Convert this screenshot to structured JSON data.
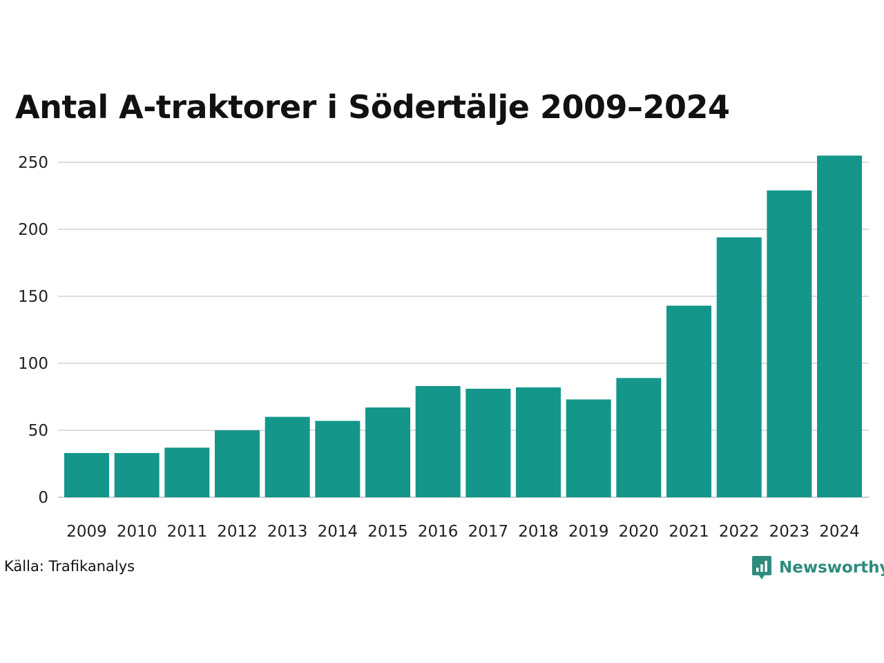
{
  "chart_data": {
    "type": "bar",
    "title": "Antal A-traktorer i Södertälje 2009–2024",
    "categories": [
      "2009",
      "2010",
      "2011",
      "2012",
      "2013",
      "2014",
      "2015",
      "2016",
      "2017",
      "2018",
      "2019",
      "2020",
      "2021",
      "2022",
      "2023",
      "2024"
    ],
    "series": [
      {
        "values": [
          33,
          33,
          37,
          50,
          60,
          57,
          67,
          83,
          81,
          82,
          73,
          89,
          143,
          194,
          229,
          255
        ]
      }
    ],
    "yticks": [
      0,
      50,
      100,
      150,
      200,
      250
    ],
    "ylim": [
      0,
      260
    ],
    "xlabel": "",
    "ylabel": "",
    "grid": true,
    "legend": "none",
    "bar_color": "#14968a",
    "grid_color": "#dddddd"
  },
  "footer": {
    "source": "Källa: Trafikanalys",
    "brand": "Newsworthy",
    "brand_icon": "newsworthy-logo-icon",
    "brand_color": "#2e8b7e"
  }
}
